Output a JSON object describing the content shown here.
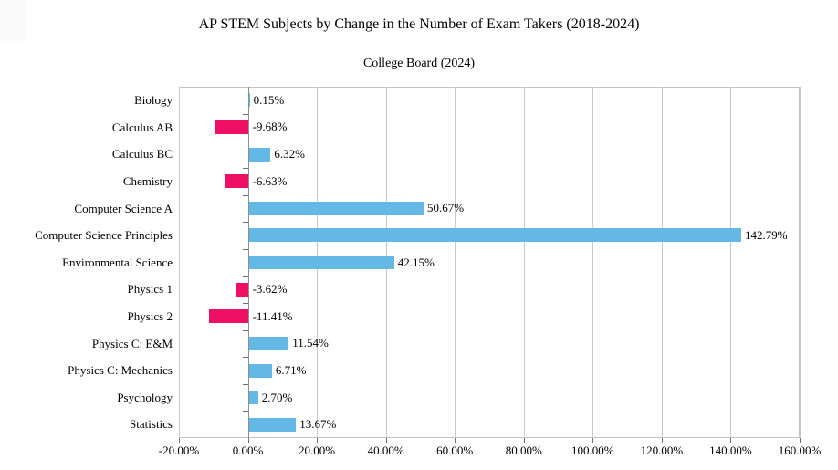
{
  "title": "AP STEM Subjects by Change in the Number of Exam Takers (2018-2024)",
  "subtitle": "College Board (2024)",
  "colors": {
    "positive_bar": "#63B8E6",
    "negative_bar": "#EF0F64",
    "gridline": "#C9C9C9",
    "plot_border": "#C3C3C3",
    "zero_axis": "#8E8E8E",
    "axis_tick": "#6E6E6E",
    "text": "#000000",
    "background": "#FFFFFF"
  },
  "chart_data": {
    "type": "bar",
    "orientation": "horizontal",
    "title": "AP STEM Subjects by Change in the Number of Exam Takers (2018-2024)",
    "subtitle": "College Board (2024)",
    "xlabel": "",
    "ylabel": "",
    "categories": [
      "Biology",
      "Calculus AB",
      "Calculus BC",
      "Chemistry",
      "Computer Science A",
      "Computer Science Principles",
      "Environmental Science",
      "Physics 1",
      "Physics 2",
      "Physics C: E&M",
      "Physics C: Mechanics",
      "Psychology",
      "Statistics"
    ],
    "values": [
      0.15,
      -9.68,
      6.32,
      -6.63,
      50.67,
      142.79,
      42.15,
      -3.62,
      -11.41,
      11.54,
      6.71,
      2.7,
      13.67
    ],
    "value_labels": [
      "0.15%",
      "-9.68%",
      "6.32%",
      "-6.63%",
      "50.67%",
      "142.79%",
      "42.15%",
      "-3.62%",
      "-11.41%",
      "11.54%",
      "6.71%",
      "2.70%",
      "13.67%"
    ],
    "x_tick_values": [
      -20,
      0,
      20,
      40,
      60,
      80,
      100,
      120,
      140,
      160
    ],
    "x_tick_labels": [
      "-20.00%",
      "0.00%",
      "20.00%",
      "40.00%",
      "60.00%",
      "80.00%",
      "100.00%",
      "120.00%",
      "140.00%",
      "160.00%"
    ],
    "xlim": [
      -20,
      160
    ],
    "grid": true,
    "legend": null
  }
}
